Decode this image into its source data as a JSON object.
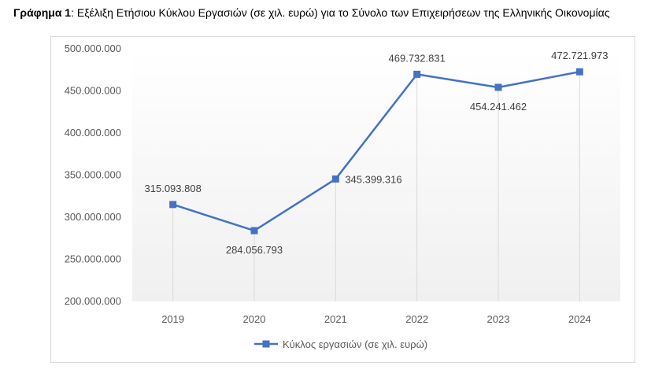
{
  "caption": {
    "label": "Γράφημα 1",
    "text": ": Εξέλιξη Ετήσιου Κύκλου Εργασιών (σε χιλ. ευρώ) για το Σύνολο των Επιχειρήσεων της Ελληνικής Οικονομίας"
  },
  "colors": {
    "series": "#4472c4",
    "gridline": "#d9d9d9",
    "tick_text": "#595959"
  },
  "chart_data": {
    "type": "line",
    "x": [
      "2019",
      "2020",
      "2021",
      "2022",
      "2023",
      "2024"
    ],
    "series": [
      {
        "name": "Κύκλος εργασιών (σε χιλ. ευρώ)",
        "values": [
          315093808,
          284056793,
          345399316,
          469732831,
          454241462,
          472721973
        ],
        "labels": [
          "315.093.808",
          "284.056.793",
          "345.399.316",
          "469.732.831",
          "454.241.462",
          "472.721.973"
        ]
      }
    ],
    "ylim": [
      200000000,
      500000000
    ],
    "yticks": [
      200000000,
      250000000,
      300000000,
      350000000,
      400000000,
      450000000,
      500000000
    ],
    "ytick_labels": [
      "200.000.000",
      "250.000.000",
      "300.000.000",
      "350.000.000",
      "400.000.000",
      "450.000.000",
      "500.000.000"
    ],
    "legend_position": "bottom",
    "grid": "vertical drop lines"
  }
}
